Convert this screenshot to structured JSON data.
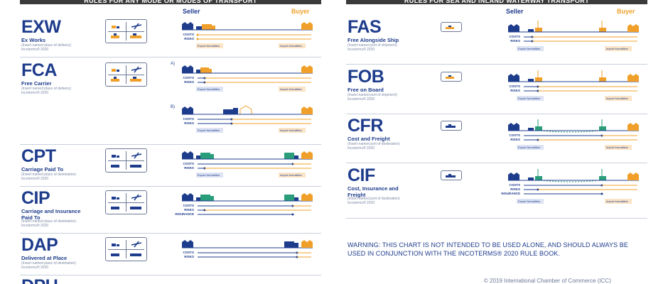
{
  "left": {
    "header": "RULES FOR ANY MODE OR MODES OF TRANSPORT",
    "seller": "Seller",
    "buyer": "Buyer"
  },
  "right": {
    "header": "RULES FOR SEA AND INLAND WATERWAY TRANSPORT",
    "seller": "Seller",
    "buyer": "Buyer"
  },
  "labels": {
    "costs": "COSTS",
    "risks": "RISKS",
    "insurance": "INSURANCE",
    "export_formalities": "Export formalities",
    "import_formalities": "Import formalities",
    "option_a": "A)",
    "option_b": "B)"
  },
  "rules_any": [
    {
      "code": "EXW",
      "name": "Ex Works",
      "place": "(Insert named place of delivery)",
      "edition": "Incoterms® 2020"
    },
    {
      "code": "FCA",
      "name": "Free Carrier",
      "place": "(Insert named place of delivery)",
      "edition": "Incoterms® 2020"
    },
    {
      "code": "CPT",
      "name": "Carriage Paid To",
      "place": "(Insert named place of destination)",
      "edition": "Incoterms® 2020"
    },
    {
      "code": "CIP",
      "name": "Carriage and Insurance Paid To",
      "place": "(Insert named place of destination)",
      "edition": "Incoterms® 2020"
    },
    {
      "code": "DAP",
      "name": "Delivered at Place",
      "place": "(Insert named place of destination)",
      "edition": "Incoterms® 2020"
    },
    {
      "code": "DPU",
      "name": "",
      "place": "",
      "edition": ""
    }
  ],
  "rules_sea": [
    {
      "code": "FAS",
      "name": "Free Alongside Ship",
      "place": "(Insert named port of shipment)",
      "edition": "Incoterms® 2020"
    },
    {
      "code": "FOB",
      "name": "Free on Board",
      "place": "(Insert named port of shipment)",
      "edition": "Incoterms® 2020"
    },
    {
      "code": "CFR",
      "name": "Cost and Freight",
      "place": "(Insert named port of destination)",
      "edition": "Incoterms® 2020"
    },
    {
      "code": "CIF",
      "name": "Cost, Insurance and Freight",
      "place": "(Insert named port of destination)",
      "edition": "Incoterms® 2020"
    }
  ],
  "warning": "WARNING: THIS CHART IS NOT INTENDED TO BE USED ALONE, AND SHOULD ALWAYS BE USED IN CONJUNCTION WITH THE INCOTERMS® 2020 RULE BOOK.",
  "copyright": "© 2019 International Chamber of Commerce (ICC)",
  "colors": {
    "navy": "#1e3c8c",
    "orange": "#f0a02a",
    "teal": "#2a9d7a",
    "grey": "#6b7895"
  }
}
